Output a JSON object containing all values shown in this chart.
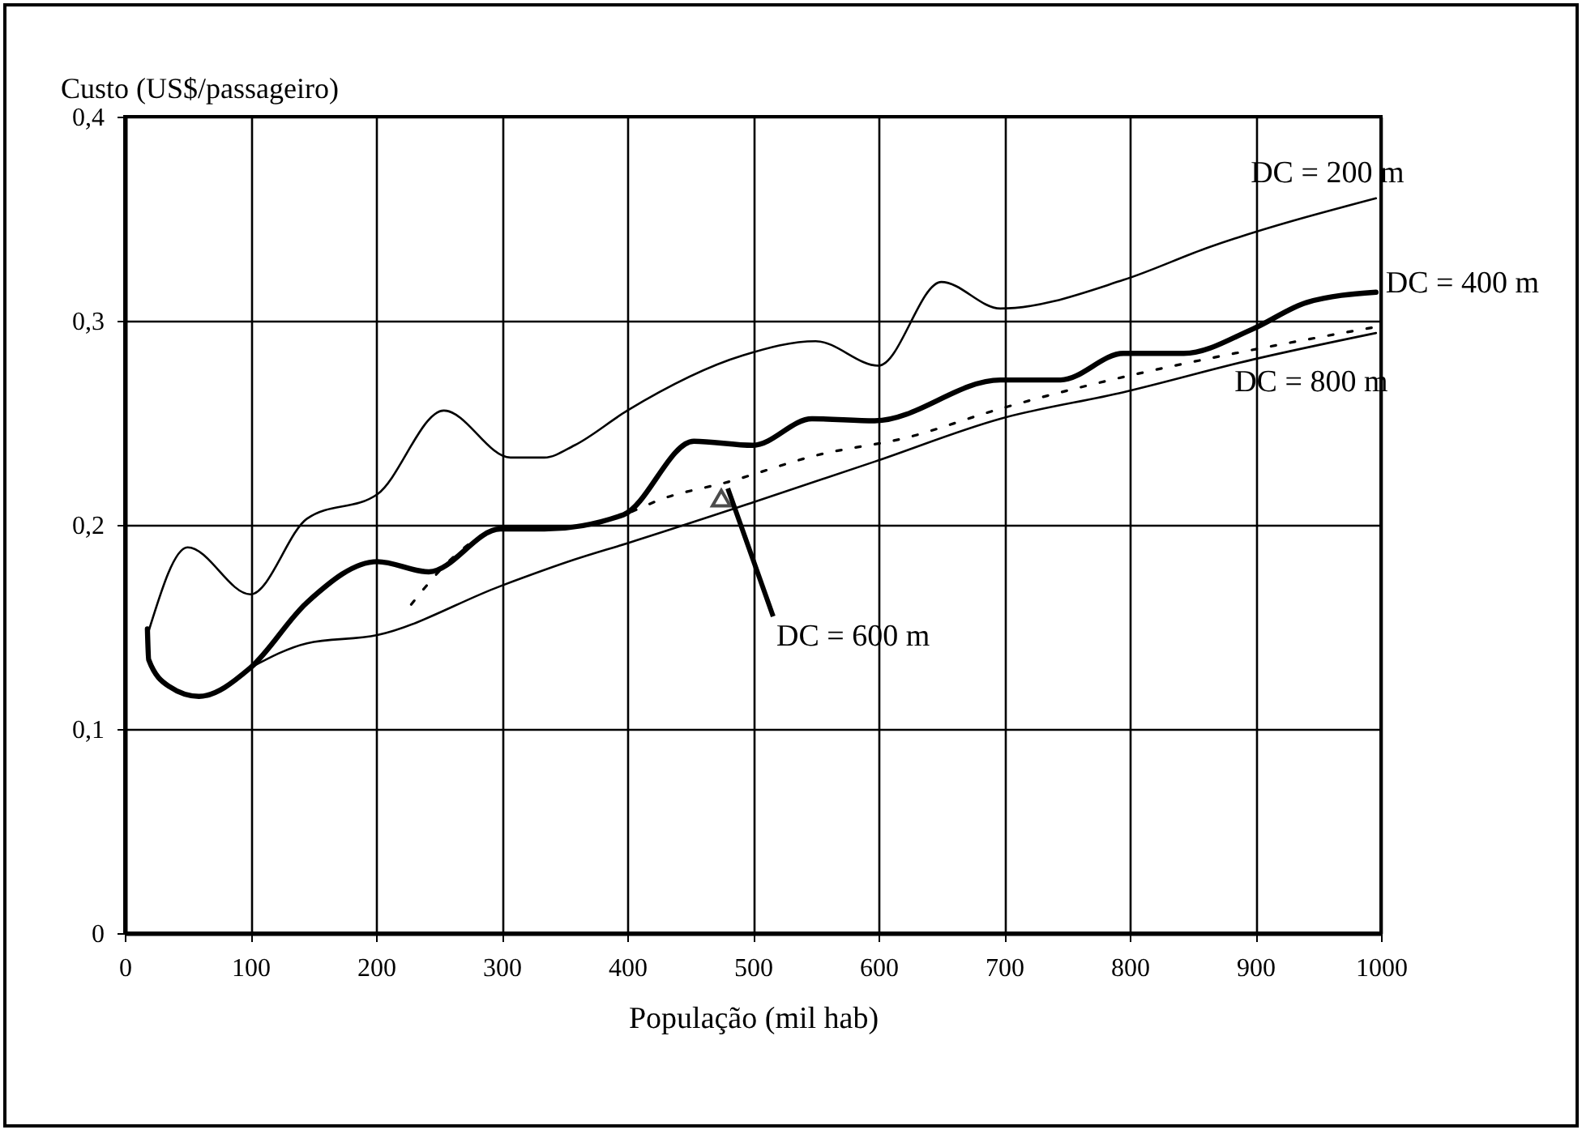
{
  "chart_data": {
    "type": "line",
    "ylabel": "Custo (US$/passageiro)",
    "xlabel": "População (mil hab)",
    "xlim": [
      0,
      1000
    ],
    "xticks": [
      0,
      100,
      200,
      300,
      400,
      500,
      600,
      700,
      800,
      900,
      1000
    ],
    "ylim": [
      0,
      0.4
    ],
    "yticks": [
      0,
      {
        "value": 0.1,
        "label": "0,1"
      },
      {
        "value": 0.2,
        "label": "0,2"
      },
      {
        "value": 0.3,
        "label": "0,3"
      },
      {
        "value": 0.4,
        "label": "0,4"
      }
    ],
    "grid": true,
    "legend": false,
    "marker": "none",
    "series": [
      {
        "name": "DC = 200 m",
        "color": "#000000",
        "line_style": "solid",
        "x": [
          19,
          50,
          100,
          145,
          201,
          254,
          307,
          334,
          358,
          400,
          492,
          550,
          600,
          650,
          697,
          795,
          863,
          996
        ],
        "values": [
          0.148,
          0.189,
          0.166,
          0.203,
          0.215,
          0.256,
          0.233,
          0.233,
          0.239,
          0.256,
          0.283,
          0.29,
          0.278,
          0.319,
          0.306,
          0.32,
          0.336,
          0.36
        ]
      },
      {
        "name": "DC = 400 m",
        "color": "#000000",
        "line_style": "solid",
        "x": [
          18,
          19,
          35,
          59,
          100,
          145,
          201,
          242,
          299,
          334,
          397,
          453,
          500,
          547,
          597,
          697,
          745,
          795,
          843,
          898,
          941,
          996
        ],
        "values": [
          0.149,
          0.134,
          0.121,
          0.116,
          0.13,
          0.162,
          0.182,
          0.177,
          0.198,
          0.198,
          0.205,
          0.241,
          0.239,
          0.252,
          0.251,
          0.271,
          0.271,
          0.284,
          0.284,
          0.296,
          0.309,
          0.314
        ]
      },
      {
        "name": "DC = 600 m",
        "color": "#000000",
        "line_style": "dotted",
        "x": [
          228,
          263,
          299,
          334,
          397,
          429,
          480,
          550,
          624,
          692,
          969,
          996
        ],
        "values": [
          0.161,
          0.185,
          0.198,
          0.198,
          0.205,
          0.213,
          0.221,
          0.234,
          0.243,
          0.256,
          0.294,
          0.297
        ]
      },
      {
        "name": "DC = 800 m",
        "color": "#000000",
        "line_style": "solid",
        "x": [
          100,
          145,
          201,
          299,
          358,
          400,
          500,
          597,
          697,
          795,
          898,
          996
        ],
        "values": [
          0.13,
          0.142,
          0.146,
          0.17,
          0.183,
          0.191,
          0.211,
          0.231,
          0.252,
          0.265,
          0.281,
          0.294
        ]
      }
    ]
  }
}
